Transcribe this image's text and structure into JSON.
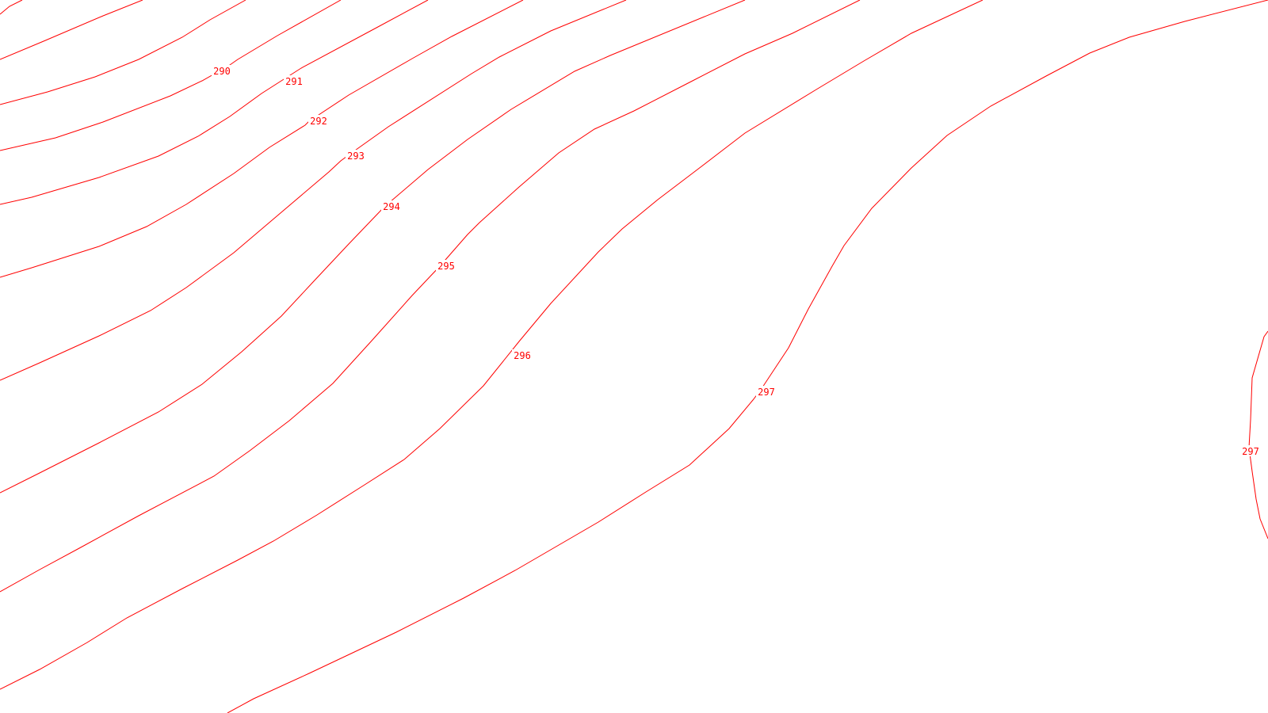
{
  "map": {
    "line_color": "#ff0000",
    "background": "#ffffff",
    "labels": [
      {
        "id": "label-290",
        "text": "290"
      },
      {
        "id": "label-291",
        "text": "291"
      },
      {
        "id": "label-292",
        "text": "292"
      },
      {
        "id": "label-293",
        "text": "293"
      },
      {
        "id": "label-294",
        "text": "294"
      },
      {
        "id": "label-295",
        "text": "295"
      },
      {
        "id": "label-296",
        "text": "296"
      },
      {
        "id": "label-297a",
        "text": "297"
      },
      {
        "id": "label-297b",
        "text": "297"
      }
    ]
  }
}
